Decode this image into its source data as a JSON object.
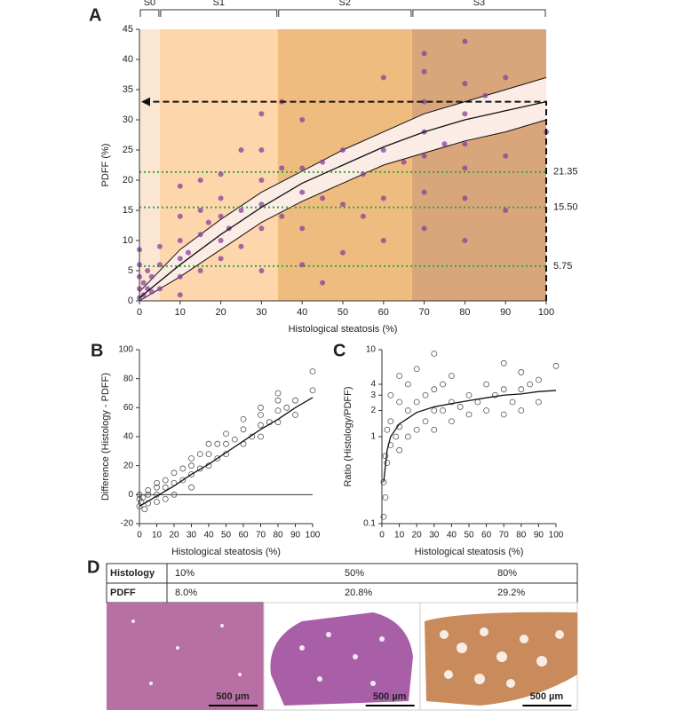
{
  "chart_data": [
    {
      "type": "scatter",
      "panel_label": "A",
      "xlabel": "Histological steatosis (%)",
      "ylabel": "PDFF (%)",
      "xlim": [
        0,
        100
      ],
      "ylim": [
        0,
        45
      ],
      "xticks": [
        0,
        10,
        20,
        30,
        40,
        50,
        60,
        70,
        80,
        90,
        100
      ],
      "yticks": [
        0,
        5,
        10,
        15,
        20,
        25,
        30,
        35,
        40,
        45
      ],
      "regions": [
        {
          "name": "S0",
          "range": [
            0,
            5
          ],
          "color": "#fbe6d4"
        },
        {
          "name": "S1",
          "range": [
            5,
            34
          ],
          "color": "#fdd6ab"
        },
        {
          "name": "S2",
          "range": [
            34,
            67
          ],
          "color": "#efbc80"
        },
        {
          "name": "S3",
          "range": [
            67,
            100
          ],
          "color": "#d8a67a"
        }
      ],
      "band": {
        "x": [
          0,
          10,
          20,
          30,
          40,
          50,
          60,
          70,
          80,
          90,
          100
        ],
        "lower": [
          0,
          4,
          8.5,
          13,
          16.5,
          19.5,
          22.5,
          24.5,
          26.5,
          28,
          30
        ],
        "upper": [
          1.5,
          8.5,
          13.5,
          18,
          21.5,
          25,
          28,
          31,
          33,
          35,
          37
        ],
        "color": "#fbece6"
      },
      "lines": [
        {
          "x": [
            0,
            10,
            20,
            30,
            40,
            50,
            60,
            70,
            80,
            90,
            100
          ],
          "values": [
            0.5,
            6,
            11,
            15.5,
            19.5,
            22.5,
            25.5,
            28,
            30,
            31.5,
            33
          ],
          "color": "#111111"
        }
      ],
      "hlines": [
        {
          "value": 21.35,
          "label": "21.35"
        },
        {
          "value": 15.5,
          "label": "15.50"
        },
        {
          "value": 5.75,
          "label": "5.75"
        }
      ],
      "hline_color": "#3aa53a",
      "arrow": {
        "x": 100,
        "y": 33
      },
      "series": [
        {
          "color": "#8a3f9c",
          "filled": true,
          "x": [
            0,
            0,
            0,
            0,
            0,
            1,
            1,
            2,
            2,
            3,
            3,
            5,
            5,
            5,
            10,
            10,
            10,
            10,
            10,
            10,
            12,
            15,
            15,
            15,
            15,
            17,
            20,
            20,
            20,
            20,
            20,
            22,
            25,
            25,
            25,
            30,
            30,
            30,
            30,
            30,
            30,
            35,
            35,
            35,
            40,
            40,
            40,
            40,
            40,
            45,
            45,
            45,
            50,
            50,
            50,
            55,
            55,
            60,
            60,
            60,
            60,
            65,
            70,
            70,
            70,
            70,
            70,
            70,
            70,
            75,
            80,
            80,
            80,
            80,
            80,
            80,
            80,
            85,
            90,
            90,
            90,
            100
          ],
          "values": [
            0.5,
            2,
            4,
            6,
            8.5,
            1,
            3,
            2,
            5,
            1.5,
            4,
            2,
            6,
            9,
            1,
            4,
            7,
            10,
            14,
            19,
            8,
            5,
            11,
            15,
            20,
            13,
            7,
            10,
            14,
            17,
            21,
            12,
            9,
            15,
            25,
            5,
            12,
            16,
            20,
            25,
            31,
            14,
            22,
            33,
            6,
            12,
            18,
            22,
            30,
            3,
            17,
            23,
            8,
            16,
            25,
            14,
            21,
            10,
            17,
            25,
            37,
            23,
            12,
            18,
            24,
            28,
            33,
            38,
            41,
            26,
            10,
            17,
            22,
            26,
            31,
            36,
            43,
            34,
            15,
            24,
            37,
            28
          ]
        }
      ]
    },
    {
      "type": "scatter",
      "panel_label": "B",
      "xlabel": "Histological steatosis (%)",
      "ylabel": "Difference (Histology - PDFF)",
      "xlim": [
        0,
        100
      ],
      "ylim": [
        -20,
        100
      ],
      "xticks": [
        0,
        10,
        20,
        30,
        40,
        50,
        60,
        70,
        80,
        90,
        100
      ],
      "yticks": [
        -20,
        0,
        20,
        40,
        60,
        80,
        100
      ],
      "ref_line": 0,
      "lines": [
        {
          "x": [
            0,
            10,
            20,
            30,
            40,
            50,
            60,
            70,
            80,
            90,
            100
          ],
          "values": [
            -8,
            -1,
            6,
            14,
            21,
            29,
            37,
            45,
            52,
            60,
            67
          ],
          "color": "#111111"
        }
      ],
      "series": [
        {
          "color": "#555555",
          "filled": false,
          "x": [
            0,
            0,
            0,
            1,
            2,
            3,
            5,
            5,
            5,
            10,
            10,
            10,
            10,
            15,
            15,
            15,
            20,
            20,
            20,
            25,
            25,
            30,
            30,
            30,
            30,
            35,
            35,
            40,
            40,
            40,
            45,
            45,
            50,
            50,
            50,
            55,
            60,
            60,
            60,
            65,
            70,
            70,
            70,
            70,
            75,
            80,
            80,
            80,
            80,
            85,
            90,
            90,
            100,
            100
          ],
          "values": [
            -8,
            -3,
            0,
            -5,
            -2,
            -10,
            -6,
            0,
            3,
            -5,
            0,
            5,
            8,
            -3,
            5,
            10,
            0,
            8,
            15,
            10,
            18,
            5,
            14,
            20,
            25,
            18,
            28,
            20,
            28,
            35,
            25,
            35,
            28,
            35,
            42,
            38,
            35,
            45,
            52,
            40,
            40,
            48,
            55,
            60,
            50,
            50,
            58,
            65,
            70,
            60,
            55,
            65,
            72,
            85
          ]
        }
      ]
    },
    {
      "type": "scatter",
      "panel_label": "C",
      "xlabel": "Histological steatosis (%)",
      "ylabel": "Ratio (Histology/PDFF)",
      "log_y": true,
      "xlim": [
        0,
        100
      ],
      "ylim": [
        0.1,
        10
      ],
      "xticks": [
        0,
        10,
        20,
        30,
        40,
        50,
        60,
        70,
        80,
        90,
        100
      ],
      "yticks": [
        0.1,
        1,
        2,
        3,
        4,
        10
      ],
      "lines": [
        {
          "x": [
            1,
            3,
            5,
            10,
            20,
            30,
            40,
            50,
            60,
            70,
            80,
            90,
            100
          ],
          "values": [
            0.3,
            0.7,
            1,
            1.4,
            1.9,
            2.2,
            2.4,
            2.6,
            2.8,
            3,
            3.1,
            3.3,
            3.4
          ],
          "color": "#111111"
        }
      ],
      "series": [
        {
          "color": "#555555",
          "filled": false,
          "x": [
            1,
            1,
            2,
            2,
            3,
            3,
            5,
            5,
            5,
            8,
            10,
            10,
            10,
            10,
            15,
            15,
            15,
            20,
            20,
            20,
            25,
            25,
            30,
            30,
            30,
            30,
            35,
            35,
            40,
            40,
            40,
            45,
            50,
            50,
            55,
            60,
            60,
            65,
            70,
            70,
            70,
            75,
            80,
            80,
            80,
            85,
            90,
            90,
            100
          ],
          "values": [
            0.12,
            0.3,
            0.2,
            0.6,
            0.5,
            1.2,
            0.8,
            1.5,
            3,
            1,
            0.7,
            1.3,
            2.5,
            5,
            1,
            2,
            4,
            1.2,
            2.5,
            6,
            1.5,
            3,
            1.2,
            2,
            3.5,
            9,
            2,
            4,
            1.5,
            2.5,
            5,
            2.2,
            1.8,
            3,
            2.5,
            2,
            4,
            3,
            1.8,
            3.5,
            7,
            2.5,
            2,
            3.5,
            5.5,
            4,
            2.5,
            4.5,
            6.5
          ]
        }
      ]
    }
  ],
  "table": {
    "panel_label": "D",
    "rows": [
      [
        "Histology",
        "10%",
        "50%",
        "80%"
      ],
      [
        "PDFF",
        "8.0%",
        "20.8%",
        "29.2%"
      ]
    ],
    "scale_bars": [
      "500 µm",
      "500 µm",
      "500 µm"
    ]
  }
}
